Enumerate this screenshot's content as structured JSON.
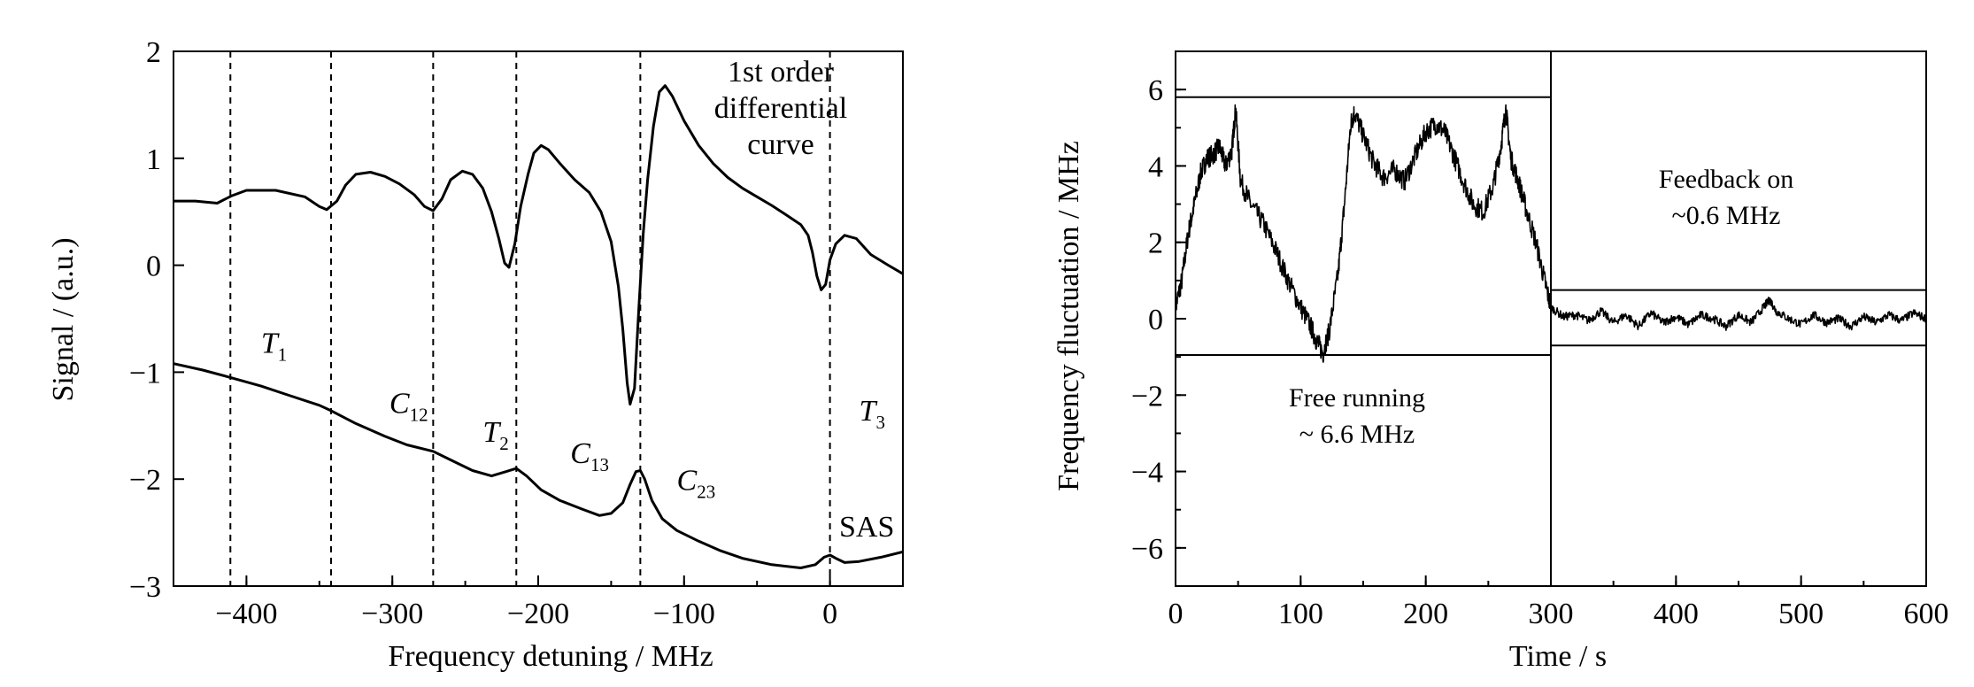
{
  "chart_data": [
    {
      "type": "line",
      "xlabel": "Frequency detuning / MHz",
      "ylabel": "Signal / (a.u.)",
      "xlim": [
        -450,
        50
      ],
      "ylim": [
        -3,
        2
      ],
      "x_ticks": [
        -400,
        -300,
        -200,
        -100,
        0
      ],
      "y_ticks": [
        -3,
        -2,
        -1,
        0,
        1,
        2
      ],
      "x_tick_labels": [
        "−400",
        "−300",
        "−200",
        "−100",
        "0"
      ],
      "y_tick_labels": [
        "−3",
        "−2",
        "−1",
        "0",
        "1",
        "2"
      ],
      "vlines_dashed": [
        -411,
        -342,
        -272,
        -215,
        -130,
        0
      ],
      "series": [
        {
          "name": "1st order differential curve",
          "points": [
            [
              -450,
              0.6
            ],
            [
              -435,
              0.6
            ],
            [
              -420,
              0.58
            ],
            [
              -410,
              0.65
            ],
            [
              -400,
              0.7
            ],
            [
              -380,
              0.7
            ],
            [
              -360,
              0.64
            ],
            [
              -350,
              0.55
            ],
            [
              -345,
              0.52
            ],
            [
              -338,
              0.6
            ],
            [
              -332,
              0.75
            ],
            [
              -325,
              0.85
            ],
            [
              -315,
              0.87
            ],
            [
              -305,
              0.83
            ],
            [
              -295,
              0.76
            ],
            [
              -285,
              0.66
            ],
            [
              -278,
              0.55
            ],
            [
              -272,
              0.51
            ],
            [
              -266,
              0.62
            ],
            [
              -260,
              0.8
            ],
            [
              -252,
              0.88
            ],
            [
              -245,
              0.85
            ],
            [
              -238,
              0.72
            ],
            [
              -232,
              0.5
            ],
            [
              -227,
              0.25
            ],
            [
              -223,
              0.02
            ],
            [
              -220,
              -0.02
            ],
            [
              -216,
              0.2
            ],
            [
              -212,
              0.55
            ],
            [
              -207,
              0.85
            ],
            [
              -203,
              1.05
            ],
            [
              -198,
              1.12
            ],
            [
              -193,
              1.08
            ],
            [
              -185,
              0.95
            ],
            [
              -175,
              0.8
            ],
            [
              -165,
              0.68
            ],
            [
              -157,
              0.5
            ],
            [
              -150,
              0.22
            ],
            [
              -145,
              -0.2
            ],
            [
              -142,
              -0.6
            ],
            [
              -139,
              -1.1
            ],
            [
              -137,
              -1.3
            ],
            [
              -134,
              -1.15
            ],
            [
              -131,
              -0.4
            ],
            [
              -128,
              0.3
            ],
            [
              -125,
              0.8
            ],
            [
              -121,
              1.3
            ],
            [
              -117,
              1.62
            ],
            [
              -113,
              1.68
            ],
            [
              -108,
              1.58
            ],
            [
              -100,
              1.35
            ],
            [
              -90,
              1.12
            ],
            [
              -80,
              0.95
            ],
            [
              -70,
              0.82
            ],
            [
              -60,
              0.72
            ],
            [
              -50,
              0.64
            ],
            [
              -40,
              0.56
            ],
            [
              -30,
              0.47
            ],
            [
              -20,
              0.38
            ],
            [
              -15,
              0.28
            ],
            [
              -12,
              0.12
            ],
            [
              -9,
              -0.1
            ],
            [
              -6,
              -0.23
            ],
            [
              -3,
              -0.18
            ],
            [
              0,
              0.05
            ],
            [
              4,
              0.2
            ],
            [
              10,
              0.28
            ],
            [
              18,
              0.25
            ],
            [
              28,
              0.1
            ],
            [
              40,
              0.0
            ],
            [
              50,
              -0.08
            ]
          ]
        },
        {
          "name": "SAS",
          "points": [
            [
              -450,
              -0.92
            ],
            [
              -430,
              -0.98
            ],
            [
              -411,
              -1.05
            ],
            [
              -390,
              -1.13
            ],
            [
              -370,
              -1.22
            ],
            [
              -350,
              -1.31
            ],
            [
              -342,
              -1.36
            ],
            [
              -325,
              -1.48
            ],
            [
              -305,
              -1.6
            ],
            [
              -290,
              -1.68
            ],
            [
              -272,
              -1.74
            ],
            [
              -260,
              -1.82
            ],
            [
              -245,
              -1.92
            ],
            [
              -232,
              -1.97
            ],
            [
              -222,
              -1.93
            ],
            [
              -215,
              -1.9
            ],
            [
              -208,
              -1.97
            ],
            [
              -198,
              -2.1
            ],
            [
              -185,
              -2.2
            ],
            [
              -170,
              -2.28
            ],
            [
              -158,
              -2.34
            ],
            [
              -150,
              -2.32
            ],
            [
              -142,
              -2.22
            ],
            [
              -137,
              -2.05
            ],
            [
              -133,
              -1.93
            ],
            [
              -130,
              -1.92
            ],
            [
              -127,
              -2.0
            ],
            [
              -122,
              -2.2
            ],
            [
              -115,
              -2.37
            ],
            [
              -105,
              -2.48
            ],
            [
              -90,
              -2.58
            ],
            [
              -75,
              -2.67
            ],
            [
              -60,
              -2.74
            ],
            [
              -40,
              -2.8
            ],
            [
              -20,
              -2.83
            ],
            [
              -10,
              -2.8
            ],
            [
              -4,
              -2.73
            ],
            [
              0,
              -2.71
            ],
            [
              4,
              -2.74
            ],
            [
              10,
              -2.78
            ],
            [
              20,
              -2.77
            ],
            [
              35,
              -2.73
            ],
            [
              50,
              -2.68
            ]
          ]
        }
      ],
      "labels": [
        {
          "text": "T",
          "sub": "1",
          "x": -390,
          "y": -0.82
        },
        {
          "text": "C",
          "sub": "12",
          "x": -302,
          "y": -1.38
        },
        {
          "text": "T",
          "sub": "2",
          "x": -238,
          "y": -1.65
        },
        {
          "text": "C",
          "sub": "13",
          "x": -178,
          "y": -1.85
        },
        {
          "text": "C",
          "sub": "23",
          "x": -105,
          "y": -2.1
        },
        {
          "text": "T",
          "sub": "3",
          "x": 20,
          "y": -1.45
        }
      ],
      "annotation_lines": [
        "1st order",
        "differential",
        "curve"
      ],
      "sas_label": "SAS"
    },
    {
      "type": "line",
      "xlabel": "Time / s",
      "ylabel": "Frequency fluctuation / MHz",
      "xlim": [
        0,
        600
      ],
      "ylim": [
        -7,
        7
      ],
      "x_ticks": [
        0,
        100,
        200,
        300,
        400,
        500,
        600
      ],
      "y_ticks": [
        -6,
        -4,
        -2,
        0,
        2,
        4,
        6
      ],
      "x_tick_labels": [
        "0",
        "100",
        "200",
        "300",
        "400",
        "500",
        "600"
      ],
      "y_tick_labels": [
        "−6",
        "−4",
        "−2",
        "0",
        "2",
        "4",
        "6"
      ],
      "divider_x": 300,
      "bound_lines": [
        {
          "x": [
            0,
            300
          ],
          "y": 5.8
        },
        {
          "x": [
            0,
            300
          ],
          "y": -0.95
        },
        {
          "x": [
            300,
            600
          ],
          "y": 0.75
        },
        {
          "x": [
            300,
            600
          ],
          "y": -0.7
        }
      ],
      "series": [
        {
          "name": "Free running",
          "points": [
            [
              0,
              0.3
            ],
            [
              5,
              1.0
            ],
            [
              10,
              2.2
            ],
            [
              15,
              3.0
            ],
            [
              20,
              3.8
            ],
            [
              25,
              4.2
            ],
            [
              30,
              4.3
            ],
            [
              35,
              4.5
            ],
            [
              40,
              4.0
            ],
            [
              45,
              4.4
            ],
            [
              48,
              5.5
            ],
            [
              52,
              3.6
            ],
            [
              60,
              3.0
            ],
            [
              70,
              2.5
            ],
            [
              80,
              1.8
            ],
            [
              90,
              1.0
            ],
            [
              100,
              0.3
            ],
            [
              108,
              -0.2
            ],
            [
              113,
              -0.6
            ],
            [
              118,
              -0.9
            ],
            [
              123,
              -0.3
            ],
            [
              130,
              1.2
            ],
            [
              135,
              3.0
            ],
            [
              140,
              5.1
            ],
            [
              143,
              5.4
            ],
            [
              150,
              4.8
            ],
            [
              158,
              4.1
            ],
            [
              166,
              3.7
            ],
            [
              175,
              3.9
            ],
            [
              183,
              3.6
            ],
            [
              192,
              4.3
            ],
            [
              200,
              4.9
            ],
            [
              208,
              5.1
            ],
            [
              215,
              4.9
            ],
            [
              222,
              4.3
            ],
            [
              230,
              3.6
            ],
            [
              238,
              3.0
            ],
            [
              246,
              2.8
            ],
            [
              254,
              3.5
            ],
            [
              260,
              4.5
            ],
            [
              264,
              5.5
            ],
            [
              268,
              4.2
            ],
            [
              274,
              3.6
            ],
            [
              280,
              2.9
            ],
            [
              288,
              2.0
            ],
            [
              295,
              1.0
            ],
            [
              300,
              0.3
            ]
          ]
        },
        {
          "name": "Feedback on",
          "points": [
            [
              300,
              0.3
            ],
            [
              310,
              0.05
            ],
            [
              320,
              0.1
            ],
            [
              330,
              -0.05
            ],
            [
              340,
              0.2
            ],
            [
              350,
              -0.1
            ],
            [
              360,
              0.1
            ],
            [
              370,
              -0.2
            ],
            [
              380,
              0.15
            ],
            [
              390,
              -0.1
            ],
            [
              400,
              0.05
            ],
            [
              410,
              -0.15
            ],
            [
              420,
              0.1
            ],
            [
              430,
              0.0
            ],
            [
              440,
              -0.2
            ],
            [
              450,
              0.1
            ],
            [
              460,
              -0.1
            ],
            [
              470,
              0.3
            ],
            [
              475,
              0.5
            ],
            [
              480,
              0.2
            ],
            [
              490,
              0.0
            ],
            [
              500,
              -0.15
            ],
            [
              510,
              0.1
            ],
            [
              520,
              -0.1
            ],
            [
              530,
              0.0
            ],
            [
              540,
              -0.2
            ],
            [
              550,
              0.05
            ],
            [
              560,
              -0.1
            ],
            [
              570,
              0.1
            ],
            [
              580,
              -0.05
            ],
            [
              590,
              0.15
            ],
            [
              600,
              0.0
            ]
          ]
        }
      ],
      "free_running_text": [
        "Free running",
        "~ 6.6 MHz"
      ],
      "feedback_text": [
        "Feedback on",
        "~0.6 MHz"
      ]
    }
  ]
}
